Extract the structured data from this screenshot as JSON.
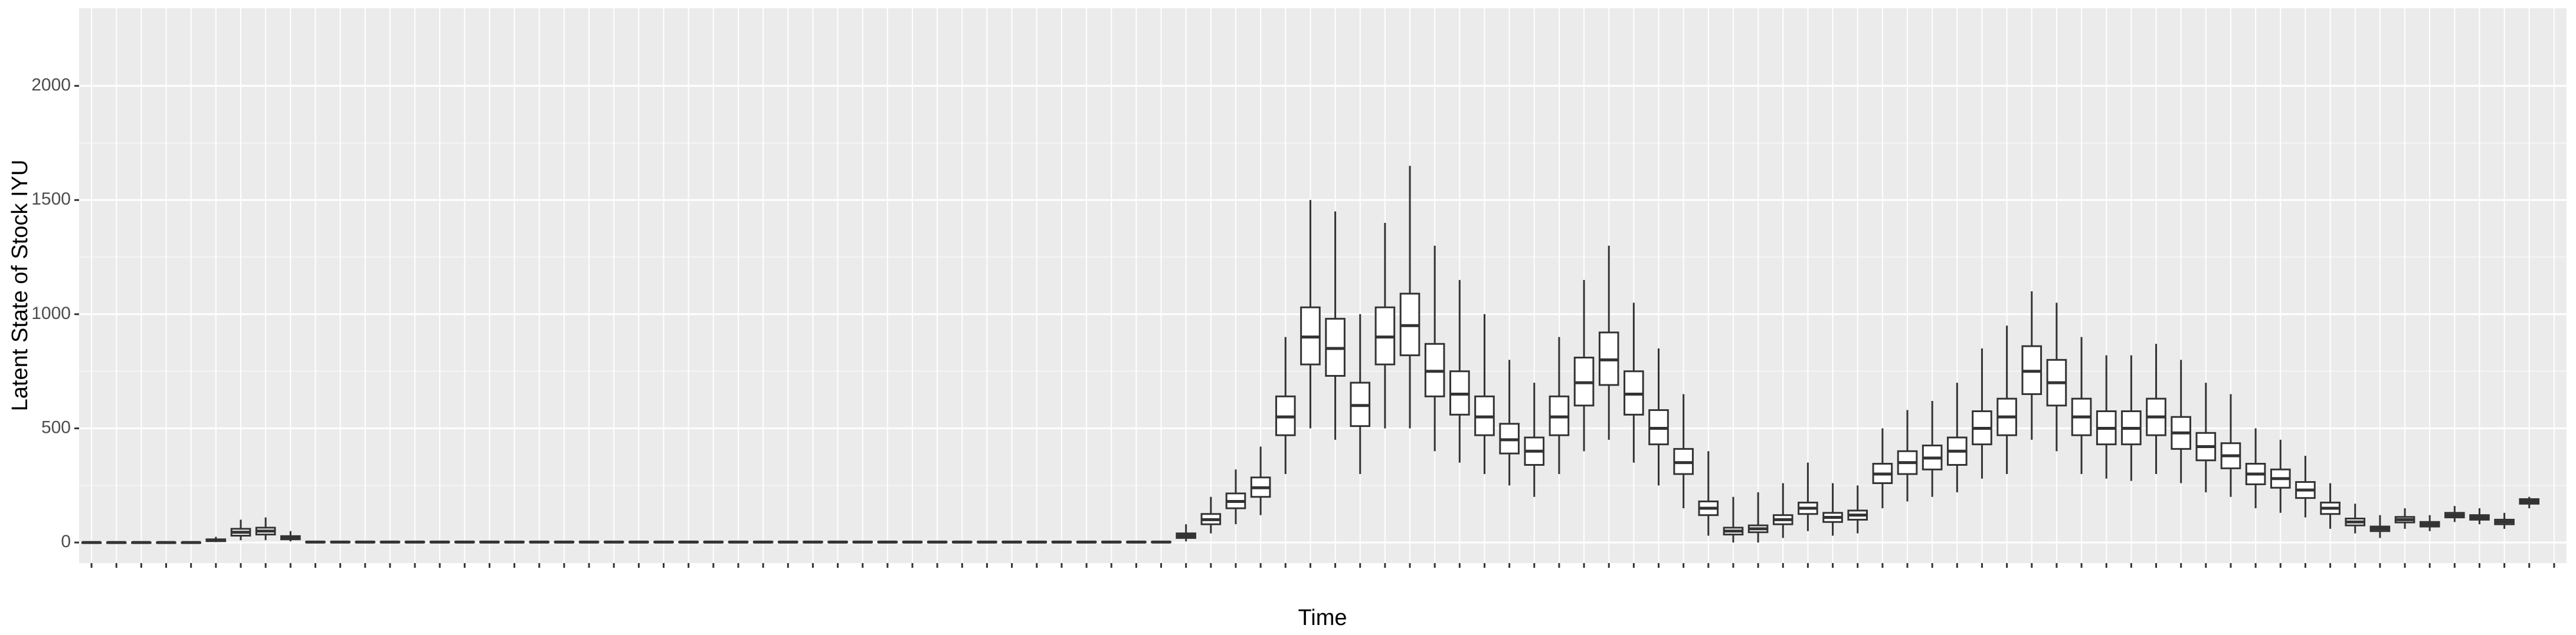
{
  "chart_data": {
    "type": "boxplot",
    "x_label": "Time",
    "y_label": "Latent State of Stock IYU",
    "categories": [
      null,
      null,
      null,
      null,
      null,
      null,
      null,
      null,
      null,
      null,
      null,
      null,
      null,
      null,
      null,
      null,
      null,
      null,
      null,
      null,
      null,
      null,
      null,
      null,
      null,
      null,
      null,
      null,
      null,
      null,
      null,
      null,
      null,
      null,
      null,
      null,
      null,
      null,
      null,
      null,
      null,
      null,
      null,
      null,
      null,
      null,
      null,
      null,
      null,
      null,
      null,
      null,
      null,
      null,
      null,
      null,
      null,
      null,
      null,
      null,
      null,
      null,
      null,
      null,
      null,
      null,
      null,
      null,
      null,
      null,
      null,
      null,
      null,
      null,
      null,
      null,
      null,
      null,
      null,
      null,
      null,
      null,
      null,
      null,
      null,
      null,
      null,
      null,
      null,
      null,
      null,
      null,
      null,
      null,
      null,
      null,
      null,
      null,
      null,
      null
    ],
    "boxes": [
      [
        0,
        0,
        0,
        0,
        0
      ],
      [
        0,
        0,
        0,
        0,
        0
      ],
      [
        0,
        0,
        0,
        0,
        0
      ],
      [
        0,
        0,
        0,
        0,
        0
      ],
      [
        0,
        0,
        0,
        0,
        0
      ],
      [
        2,
        6,
        10,
        14,
        25
      ],
      [
        10,
        30,
        45,
        60,
        100
      ],
      [
        10,
        35,
        50,
        65,
        110
      ],
      [
        5,
        14,
        20,
        28,
        50
      ],
      [
        0,
        1,
        2,
        3,
        6
      ],
      [
        0,
        1,
        2,
        3,
        6
      ],
      [
        0,
        1,
        2,
        3,
        6
      ],
      [
        0,
        1,
        2,
        3,
        6
      ],
      [
        0,
        1,
        2,
        3,
        6
      ],
      [
        0,
        1,
        2,
        3,
        6
      ],
      [
        0,
        1,
        2,
        3,
        6
      ],
      [
        0,
        1,
        2,
        3,
        6
      ],
      [
        0,
        1,
        2,
        3,
        6
      ],
      [
        0,
        1,
        2,
        3,
        6
      ],
      [
        0,
        1,
        2,
        3,
        6
      ],
      [
        0,
        1,
        2,
        3,
        6
      ],
      [
        0,
        1,
        2,
        3,
        6
      ],
      [
        0,
        1,
        2,
        3,
        6
      ],
      [
        0,
        1,
        2,
        3,
        6
      ],
      [
        0,
        1,
        2,
        3,
        6
      ],
      [
        0,
        1,
        2,
        3,
        6
      ],
      [
        0,
        1,
        2,
        3,
        6
      ],
      [
        0,
        1,
        2,
        3,
        6
      ],
      [
        0,
        1,
        2,
        3,
        6
      ],
      [
        0,
        1,
        2,
        3,
        6
      ],
      [
        0,
        1,
        2,
        3,
        6
      ],
      [
        0,
        1,
        2,
        3,
        6
      ],
      [
        0,
        1,
        2,
        3,
        6
      ],
      [
        0,
        1,
        2,
        3,
        6
      ],
      [
        0,
        1,
        2,
        3,
        6
      ],
      [
        0,
        1,
        2,
        3,
        6
      ],
      [
        0,
        1,
        2,
        3,
        6
      ],
      [
        0,
        1,
        2,
        3,
        6
      ],
      [
        0,
        1,
        2,
        3,
        6
      ],
      [
        0,
        1,
        2,
        3,
        6
      ],
      [
        0,
        1,
        2,
        3,
        6
      ],
      [
        0,
        1,
        2,
        3,
        6
      ],
      [
        0,
        1,
        2,
        3,
        6
      ],
      [
        0,
        1,
        2,
        3,
        6
      ],
      [
        5,
        20,
        30,
        40,
        80
      ],
      [
        40,
        80,
        100,
        125,
        200
      ],
      [
        80,
        150,
        180,
        215,
        320
      ],
      [
        120,
        200,
        240,
        285,
        420
      ],
      [
        300,
        470,
        550,
        640,
        900
      ],
      [
        500,
        780,
        900,
        1030,
        1500
      ],
      [
        450,
        730,
        850,
        980,
        1450
      ],
      [
        300,
        510,
        600,
        700,
        1000
      ],
      [
        500,
        780,
        900,
        1030,
        1400
      ],
      [
        500,
        820,
        950,
        1090,
        1650
      ],
      [
        400,
        640,
        750,
        870,
        1300
      ],
      [
        350,
        560,
        650,
        750,
        1150
      ],
      [
        300,
        470,
        550,
        640,
        1000
      ],
      [
        250,
        390,
        450,
        520,
        800
      ],
      [
        200,
        340,
        400,
        460,
        700
      ],
      [
        300,
        470,
        550,
        640,
        900
      ],
      [
        400,
        600,
        700,
        810,
        1150
      ],
      [
        450,
        690,
        800,
        920,
        1300
      ],
      [
        350,
        560,
        650,
        750,
        1050
      ],
      [
        250,
        430,
        500,
        580,
        850
      ],
      [
        150,
        300,
        350,
        410,
        650
      ],
      [
        30,
        120,
        150,
        180,
        400
      ],
      [
        0,
        35,
        50,
        65,
        200
      ],
      [
        0,
        45,
        60,
        75,
        220
      ],
      [
        20,
        80,
        100,
        120,
        260
      ],
      [
        50,
        125,
        150,
        175,
        350
      ],
      [
        30,
        90,
        110,
        130,
        260
      ],
      [
        40,
        100,
        120,
        140,
        250
      ],
      [
        150,
        260,
        300,
        345,
        500
      ],
      [
        180,
        300,
        350,
        400,
        580
      ],
      [
        200,
        320,
        370,
        425,
        620
      ],
      [
        220,
        340,
        400,
        460,
        700
      ],
      [
        280,
        430,
        500,
        575,
        850
      ],
      [
        300,
        470,
        550,
        630,
        950
      ],
      [
        450,
        650,
        750,
        860,
        1100
      ],
      [
        400,
        600,
        700,
        800,
        1050
      ],
      [
        300,
        470,
        550,
        630,
        900
      ],
      [
        280,
        430,
        500,
        575,
        820
      ],
      [
        270,
        430,
        500,
        575,
        820
      ],
      [
        300,
        470,
        550,
        630,
        870
      ],
      [
        260,
        410,
        480,
        550,
        800
      ],
      [
        220,
        360,
        420,
        480,
        700
      ],
      [
        200,
        325,
        380,
        435,
        650
      ],
      [
        150,
        255,
        300,
        345,
        500
      ],
      [
        130,
        240,
        280,
        320,
        450
      ],
      [
        110,
        195,
        230,
        265,
        380
      ],
      [
        60,
        125,
        150,
        175,
        260
      ],
      [
        40,
        75,
        90,
        105,
        170
      ],
      [
        20,
        50,
        60,
        70,
        120
      ],
      [
        60,
        88,
        100,
        112,
        150
      ],
      [
        50,
        70,
        80,
        90,
        120
      ],
      [
        90,
        110,
        120,
        130,
        160
      ],
      [
        80,
        100,
        110,
        120,
        150
      ],
      [
        60,
        80,
        90,
        100,
        130
      ],
      [
        150,
        170,
        180,
        190,
        200
      ]
    ],
    "ylim": [
      -90,
      2340
    ],
    "yticks": [
      0,
      500,
      1000,
      1500,
      2000
    ],
    "grid": true,
    "color": "#333333"
  }
}
